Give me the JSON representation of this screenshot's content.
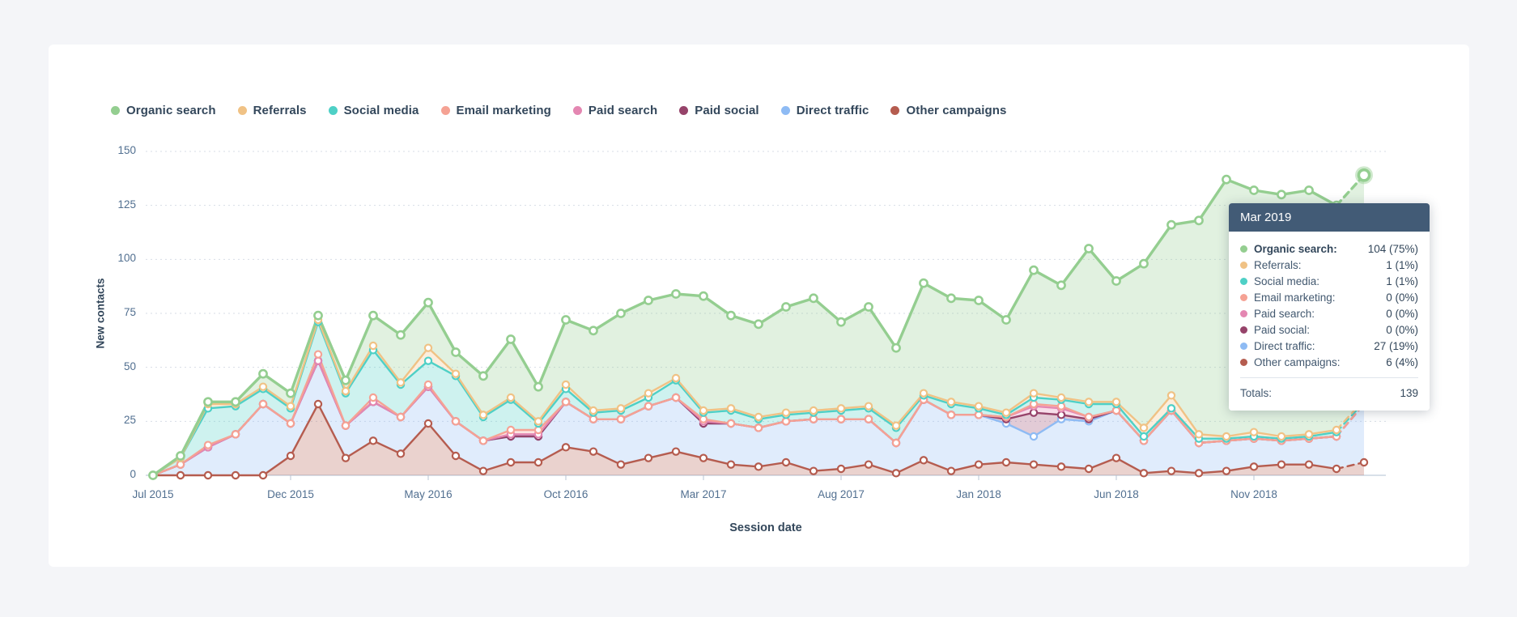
{
  "legend": {
    "items": [
      {
        "label": "Organic search",
        "color": "#94ce90"
      },
      {
        "label": "Referrals",
        "color": "#f0c285"
      },
      {
        "label": "Social media",
        "color": "#4ed0c6"
      },
      {
        "label": "Email marketing",
        "color": "#f5a294"
      },
      {
        "label": "Paid search",
        "color": "#e487b2"
      },
      {
        "label": "Paid social",
        "color": "#96436a"
      },
      {
        "label": "Direct traffic",
        "color": "#8ebbf4"
      },
      {
        "label": "Other campaigns",
        "color": "#b55c4f"
      }
    ]
  },
  "chart_data": {
    "type": "area",
    "stacked": true,
    "xlabel": "Session date",
    "ylabel": "New contacts",
    "ylim": [
      0,
      150
    ],
    "yticks": [
      0,
      25,
      50,
      75,
      100,
      125,
      150
    ],
    "grid": "dashed-horizontal",
    "legend_position": "top-left",
    "x": [
      "Jul 2015",
      "Aug 2015",
      "Sep 2015",
      "Oct 2015",
      "Nov 2015",
      "Dec 2015",
      "Jan 2016",
      "Feb 2016",
      "Mar 2016",
      "Apr 2016",
      "May 2016",
      "Jun 2016",
      "Jul 2016",
      "Aug 2016",
      "Sep 2016",
      "Oct 2016",
      "Nov 2016",
      "Dec 2016",
      "Jan 2017",
      "Feb 2017",
      "Mar 2017",
      "Apr 2017",
      "May 2017",
      "Jun 2017",
      "Jul 2017",
      "Aug 2017",
      "Sep 2017",
      "Oct 2017",
      "Nov 2017",
      "Dec 2017",
      "Jan 2018",
      "Feb 2018",
      "Mar 2018",
      "Apr 2018",
      "May 2018",
      "Jun 2018",
      "Jul 2018",
      "Aug 2018",
      "Sep 2018",
      "Oct 2018",
      "Nov 2018",
      "Dec 2018",
      "Jan 2019",
      "Feb 2019",
      "Mar 2019"
    ],
    "x_tick_indices": [
      0,
      5,
      10,
      15,
      20,
      25,
      30,
      35,
      40
    ],
    "x_tick_labels": [
      "Jul 2015",
      "Dec 2015",
      "May 2016",
      "Oct 2016",
      "Mar 2017",
      "Aug 2017",
      "Jan 2018",
      "Jun 2018",
      "Nov 2018"
    ],
    "last_segment_dashed": true,
    "highlight_index": 44,
    "stack_bottom_to_top": [
      "Other campaigns",
      "Direct traffic",
      "Paid social",
      "Paid search",
      "Email marketing",
      "Social media",
      "Referrals",
      "Organic search"
    ],
    "series": [
      {
        "name": "Organic search",
        "color": "#94ce90",
        "values": [
          0,
          1,
          1,
          1,
          6,
          6,
          2,
          5,
          14,
          22,
          21,
          10,
          18,
          27,
          16,
          30,
          37,
          44,
          43,
          39,
          53,
          43,
          43,
          49,
          52,
          40,
          46,
          36,
          51,
          48,
          49,
          43,
          57,
          52,
          71,
          56,
          76,
          79,
          99,
          119,
          112,
          112,
          113,
          104,
          104
        ]
      },
      {
        "name": "Referrals",
        "color": "#f0c285",
        "values": [
          0,
          0,
          2,
          1,
          1,
          1,
          1,
          1,
          2,
          1,
          6,
          1,
          1,
          1,
          1,
          2,
          1,
          1,
          2,
          1,
          1,
          1,
          1,
          1,
          1,
          1,
          1,
          1,
          1,
          1,
          1,
          1,
          2,
          1,
          1,
          1,
          4,
          6,
          2,
          1,
          2,
          1,
          1,
          1,
          1
        ]
      },
      {
        "name": "Social media",
        "color": "#4ed0c6",
        "values": [
          0,
          3,
          17,
          13,
          7,
          7,
          15,
          15,
          22,
          15,
          11,
          21,
          11,
          14,
          3,
          6,
          3,
          4,
          4,
          8,
          3,
          6,
          4,
          3,
          3,
          4,
          5,
          7,
          2,
          5,
          3,
          1,
          3,
          3,
          6,
          3,
          2,
          1,
          2,
          1,
          1,
          1,
          1,
          2,
          1
        ]
      },
      {
        "name": "Email marketing",
        "color": "#f5a294",
        "values": [
          0,
          0,
          1,
          0,
          0,
          0,
          3,
          0,
          2,
          0,
          1,
          0,
          0,
          2,
          2,
          0,
          0,
          0,
          0,
          0,
          1,
          0,
          0,
          0,
          0,
          0,
          0,
          0,
          0,
          0,
          0,
          0,
          1,
          1,
          0,
          0,
          0,
          0,
          0,
          0,
          0,
          0,
          0,
          0,
          0
        ]
      },
      {
        "name": "Paid search",
        "color": "#e487b2",
        "values": [
          0,
          0,
          0,
          0,
          0,
          0,
          0,
          0,
          0,
          0,
          0,
          0,
          0,
          1,
          1,
          0,
          0,
          0,
          0,
          0,
          1,
          0,
          0,
          0,
          0,
          0,
          0,
          0,
          0,
          0,
          0,
          1,
          3,
          3,
          1,
          0,
          0,
          0,
          0,
          0,
          0,
          0,
          0,
          0,
          0
        ]
      },
      {
        "name": "Paid social",
        "color": "#96436a",
        "values": [
          0,
          0,
          0,
          0,
          0,
          0,
          0,
          0,
          0,
          0,
          0,
          0,
          0,
          0,
          0,
          0,
          0,
          0,
          0,
          0,
          0,
          0,
          0,
          0,
          0,
          0,
          0,
          0,
          0,
          0,
          0,
          2,
          11,
          2,
          1,
          0,
          0,
          0,
          0,
          0,
          0,
          0,
          0,
          0,
          0
        ]
      },
      {
        "name": "Direct traffic",
        "color": "#8ebbf4",
        "values": [
          0,
          5,
          13,
          19,
          33,
          15,
          20,
          15,
          18,
          17,
          17,
          16,
          14,
          12,
          12,
          21,
          15,
          21,
          24,
          25,
          16,
          19,
          18,
          19,
          24,
          23,
          21,
          14,
          28,
          26,
          23,
          18,
          13,
          22,
          22,
          22,
          15,
          28,
          14,
          14,
          13,
          11,
          12,
          15,
          27
        ]
      },
      {
        "name": "Other campaigns",
        "color": "#b55c4f",
        "values": [
          0,
          0,
          0,
          0,
          0,
          9,
          33,
          8,
          16,
          10,
          24,
          9,
          2,
          6,
          6,
          13,
          11,
          5,
          8,
          11,
          8,
          5,
          4,
          6,
          2,
          3,
          5,
          1,
          7,
          2,
          5,
          6,
          5,
          4,
          3,
          8,
          1,
          2,
          1,
          2,
          4,
          5,
          5,
          3,
          6
        ]
      }
    ]
  },
  "tooltip": {
    "title": "Mar 2019",
    "rows": [
      {
        "label": "Organic search:",
        "value": "104 (75%)",
        "color": "#94ce90",
        "bold": true
      },
      {
        "label": "Referrals:",
        "value": "1 (1%)",
        "color": "#f0c285",
        "bold": false
      },
      {
        "label": "Social media:",
        "value": "1 (1%)",
        "color": "#4ed0c6",
        "bold": false
      },
      {
        "label": "Email marketing:",
        "value": "0 (0%)",
        "color": "#f5a294",
        "bold": false
      },
      {
        "label": "Paid search:",
        "value": "0 (0%)",
        "color": "#e487b2",
        "bold": false
      },
      {
        "label": "Paid social:",
        "value": "0 (0%)",
        "color": "#96436a",
        "bold": false
      },
      {
        "label": "Direct traffic:",
        "value": "27 (19%)",
        "color": "#8ebbf4",
        "bold": false
      },
      {
        "label": "Other campaigns:",
        "value": "6 (4%)",
        "color": "#b55c4f",
        "bold": false
      }
    ],
    "totals_label": "Totals:",
    "totals_value": "139"
  }
}
